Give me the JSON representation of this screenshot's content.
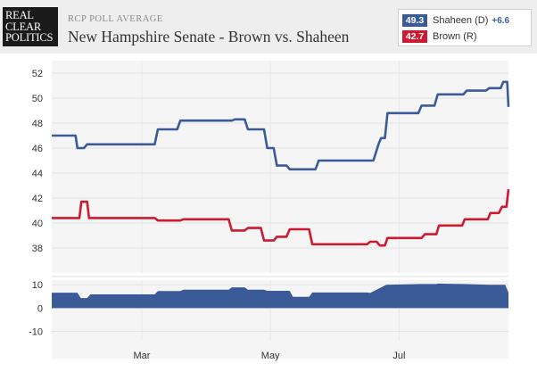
{
  "header": {
    "logo_lines": [
      "REAL",
      "CLEAR",
      "POLITICS"
    ],
    "subtitle": "RCP POLL AVERAGE",
    "title": "New Hampshire Senate - Brown vs. Shaheen"
  },
  "legend": {
    "items": [
      {
        "value": "49.3",
        "name": "Shaheen (D)",
        "diff": "+6.6",
        "color": "#3b5b98"
      },
      {
        "value": "42.7",
        "name": "Brown (R)",
        "diff": "",
        "color": "#cc1a30"
      }
    ]
  },
  "chart_data": {
    "type": "line",
    "title": "New Hampshire Senate - Brown vs. Shaheen",
    "xlabel": "",
    "ylabel": "",
    "x_ticks": [
      "Mar",
      "May",
      "Jul"
    ],
    "x_tick_positions": [
      1.4,
      3.4,
      5.4
    ],
    "x_range": [
      0,
      7.1
    ],
    "ylim": [
      36,
      53
    ],
    "y_ticks": [
      38,
      40,
      42,
      44,
      46,
      48,
      50,
      52
    ],
    "grid": true,
    "series": [
      {
        "name": "Shaheen (D)",
        "color": "#3b5b98",
        "points": [
          [
            0,
            47.0
          ],
          [
            0.37,
            47.0
          ],
          [
            0.4,
            46.0
          ],
          [
            0.5,
            46.0
          ],
          [
            0.55,
            46.3
          ],
          [
            1.6,
            46.3
          ],
          [
            1.65,
            47.5
          ],
          [
            1.95,
            47.5
          ],
          [
            2.0,
            48.2
          ],
          [
            2.8,
            48.2
          ],
          [
            2.85,
            48.3
          ],
          [
            3.0,
            48.3
          ],
          [
            3.05,
            47.5
          ],
          [
            3.3,
            47.5
          ],
          [
            3.35,
            46.0
          ],
          [
            3.45,
            46.0
          ],
          [
            3.5,
            44.6
          ],
          [
            3.65,
            44.6
          ],
          [
            3.7,
            44.3
          ],
          [
            4.1,
            44.3
          ],
          [
            4.15,
            45.0
          ],
          [
            5.0,
            45.0
          ],
          [
            5.08,
            46.3
          ],
          [
            5.12,
            46.8
          ],
          [
            5.18,
            46.8
          ],
          [
            5.22,
            48.8
          ],
          [
            5.7,
            48.8
          ],
          [
            5.75,
            49.4
          ],
          [
            5.95,
            49.4
          ],
          [
            6.0,
            50.3
          ],
          [
            6.4,
            50.3
          ],
          [
            6.45,
            50.6
          ],
          [
            6.75,
            50.6
          ],
          [
            6.8,
            50.8
          ],
          [
            6.98,
            50.8
          ],
          [
            7.02,
            51.3
          ],
          [
            7.08,
            51.3
          ],
          [
            7.1,
            49.3
          ]
        ]
      },
      {
        "name": "Brown (R)",
        "color": "#cc1a30",
        "points": [
          [
            0,
            40.4
          ],
          [
            0.43,
            40.4
          ],
          [
            0.46,
            41.7
          ],
          [
            0.55,
            41.7
          ],
          [
            0.58,
            40.4
          ],
          [
            1.6,
            40.4
          ],
          [
            1.65,
            40.2
          ],
          [
            2.0,
            40.2
          ],
          [
            2.05,
            40.3
          ],
          [
            2.75,
            40.3
          ],
          [
            2.8,
            39.4
          ],
          [
            3.0,
            39.4
          ],
          [
            3.05,
            39.6
          ],
          [
            3.25,
            39.6
          ],
          [
            3.3,
            38.6
          ],
          [
            3.45,
            38.6
          ],
          [
            3.5,
            38.9
          ],
          [
            3.65,
            38.9
          ],
          [
            3.7,
            39.5
          ],
          [
            4.0,
            39.5
          ],
          [
            4.05,
            38.3
          ],
          [
            4.9,
            38.3
          ],
          [
            4.95,
            38.5
          ],
          [
            5.05,
            38.5
          ],
          [
            5.1,
            38.2
          ],
          [
            5.18,
            38.2
          ],
          [
            5.22,
            38.8
          ],
          [
            5.75,
            38.8
          ],
          [
            5.8,
            39.1
          ],
          [
            5.98,
            39.1
          ],
          [
            6.02,
            39.8
          ],
          [
            6.38,
            39.8
          ],
          [
            6.42,
            40.3
          ],
          [
            6.78,
            40.3
          ],
          [
            6.82,
            40.8
          ],
          [
            6.95,
            40.8
          ],
          [
            7.0,
            41.3
          ],
          [
            7.07,
            41.3
          ],
          [
            7.1,
            42.7
          ]
        ]
      }
    ],
    "spread": {
      "name": "Spread",
      "color": "#3b5b98",
      "ylim": [
        -14,
        12
      ],
      "y_ticks": [
        10,
        0,
        -10
      ],
      "points": [
        [
          0,
          6.6
        ],
        [
          0.4,
          6.6
        ],
        [
          0.45,
          4.3
        ],
        [
          0.55,
          4.3
        ],
        [
          0.6,
          5.9
        ],
        [
          1.6,
          5.9
        ],
        [
          1.65,
          7.3
        ],
        [
          2.0,
          7.3
        ],
        [
          2.05,
          7.9
        ],
        [
          2.75,
          7.9
        ],
        [
          2.8,
          8.9
        ],
        [
          3.0,
          8.9
        ],
        [
          3.05,
          7.9
        ],
        [
          3.3,
          7.9
        ],
        [
          3.35,
          7.4
        ],
        [
          3.7,
          7.4
        ],
        [
          3.75,
          4.8
        ],
        [
          4.0,
          4.8
        ],
        [
          4.05,
          6.7
        ],
        [
          4.9,
          6.7
        ],
        [
          4.95,
          6.5
        ],
        [
          5.1,
          8.6
        ],
        [
          5.2,
          10.0
        ],
        [
          5.75,
          10.3
        ],
        [
          5.98,
          10.3
        ],
        [
          6.0,
          10.5
        ],
        [
          6.4,
          10.3
        ],
        [
          6.8,
          10.0
        ],
        [
          7.05,
          10.0
        ],
        [
          7.1,
          6.6
        ]
      ]
    }
  }
}
